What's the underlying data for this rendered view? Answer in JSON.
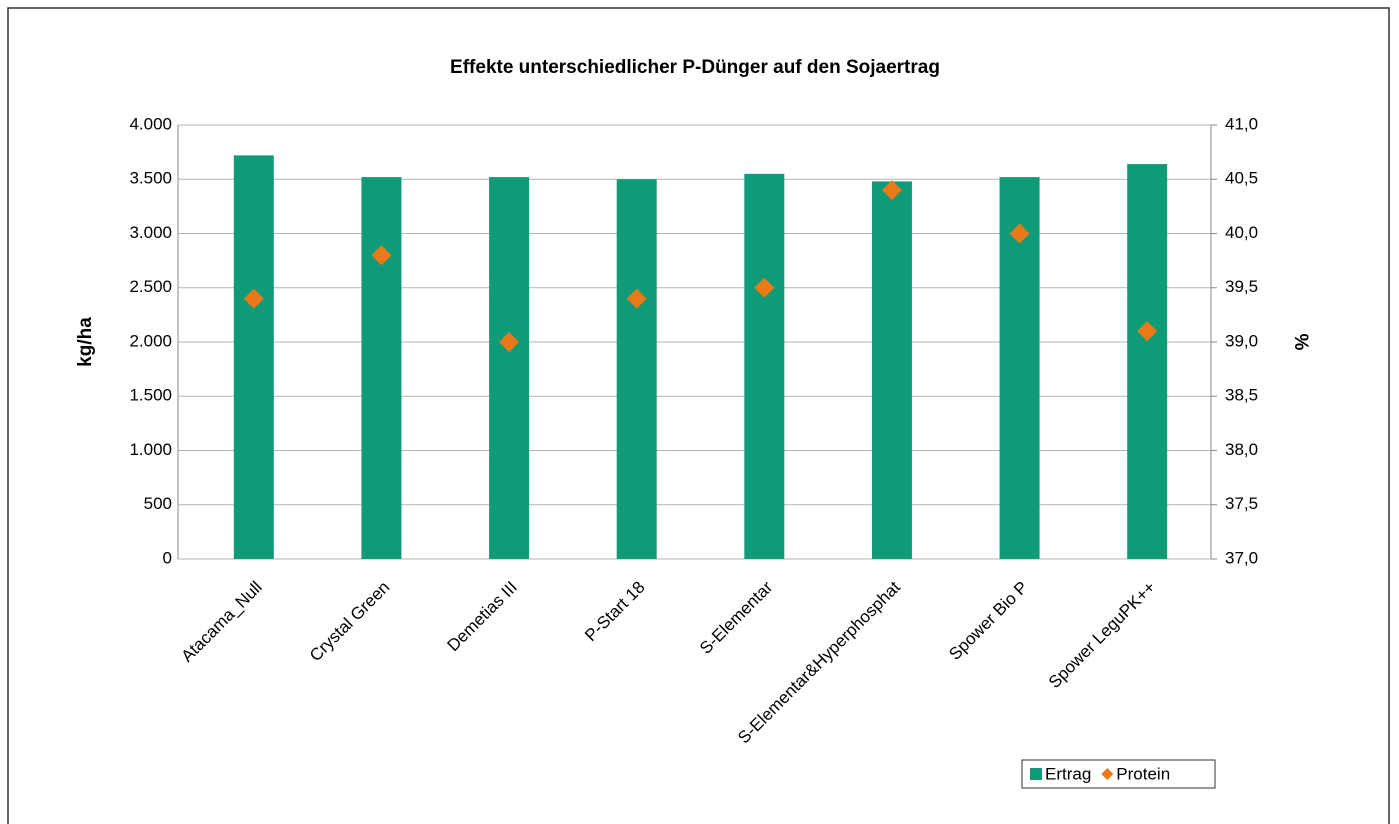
{
  "chart_data": {
    "type": "bar_scatter",
    "title": "Effekte unterschiedlicher P-Dünger auf den Sojaertrag",
    "y_label": "kg/ha",
    "y2_label": "%",
    "categories": [
      "Atacama_Null",
      "Crystal Green",
      "Demetias III",
      "P-Start 18",
      "S-Elementar",
      "S-Elementar&Hyperphosphat",
      "Spower Bio P",
      "Spower LeguPK++"
    ],
    "series": [
      {
        "name": "Ertrag",
        "type": "bar",
        "color": "#0f9b78",
        "values": [
          3720,
          3520,
          3520,
          3500,
          3550,
          3480,
          3520,
          3640
        ]
      },
      {
        "name": "Protein",
        "type": "scatter",
        "axis": "y2",
        "color": "#e97a17",
        "values": [
          39.4,
          39.8,
          39.0,
          39.4,
          39.5,
          40.4,
          40.0,
          39.1
        ]
      }
    ],
    "ylim": [
      0,
      4000
    ],
    "yticks": [
      0,
      500,
      {
        "value": 1000,
        "label": "1.000"
      },
      {
        "value": 1500,
        "label": "1.500"
      },
      {
        "value": 2000,
        "label": "2.000"
      },
      {
        "value": 2500,
        "label": "2.500"
      },
      {
        "value": 3000,
        "label": "3.000"
      },
      {
        "value": 3500,
        "label": "3.500"
      },
      {
        "value": 4000,
        "label": "4.000"
      }
    ],
    "y2lim": [
      37,
      41
    ],
    "y2ticks": [
      {
        "value": 37,
        "label": "37,0"
      },
      {
        "value": 37.5,
        "label": "37,5"
      },
      {
        "value": 38,
        "label": "38,0"
      },
      {
        "value": 38.5,
        "label": "38,5"
      },
      {
        "value": 39,
        "label": "39,0"
      },
      {
        "value": 39.5,
        "label": "39,5"
      },
      {
        "value": 40,
        "label": "40,0"
      },
      {
        "value": 40.5,
        "label": "40,5"
      },
      {
        "value": 41,
        "label": "41,0"
      }
    ],
    "grid": true,
    "legend": "bottom-right"
  }
}
